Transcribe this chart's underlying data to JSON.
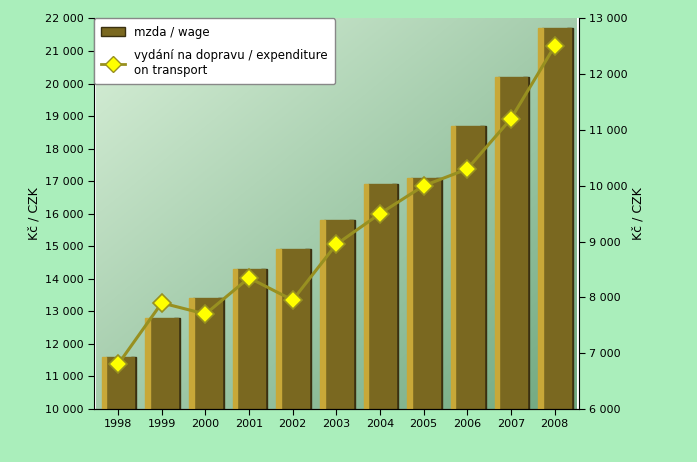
{
  "years": [
    1998,
    1999,
    2000,
    2001,
    2002,
    2003,
    2004,
    2005,
    2006,
    2007,
    2008
  ],
  "wage": [
    11600,
    12800,
    13400,
    14300,
    14900,
    15800,
    16900,
    17100,
    18700,
    20200,
    21700
  ],
  "expenditure": [
    6800,
    7900,
    7700,
    8350,
    7950,
    8950,
    9500,
    10000,
    10300,
    11200,
    12500
  ],
  "bar_color_main": "#7a6820",
  "bar_color_left": "#c8a838",
  "bar_color_dark": "#3a3010",
  "line_color": "#989020",
  "marker_facecolor": "#ffff00",
  "marker_edgecolor": "#989020",
  "background_outer": "#aaeebb",
  "ylabel_left": "Kč / CZK",
  "ylabel_right": "Kč / CZK",
  "ylim_left": [
    10000,
    22000
  ],
  "ylim_right": [
    6000,
    13000
  ],
  "yticks_left": [
    10000,
    11000,
    12000,
    13000,
    14000,
    15000,
    16000,
    17000,
    18000,
    19000,
    20000,
    21000,
    22000
  ],
  "yticks_right": [
    6000,
    7000,
    8000,
    9000,
    10000,
    11000,
    12000,
    13000
  ],
  "legend_wage": "mzda / wage",
  "legend_exp": "vydání na dopravu / expenditure\non transport"
}
